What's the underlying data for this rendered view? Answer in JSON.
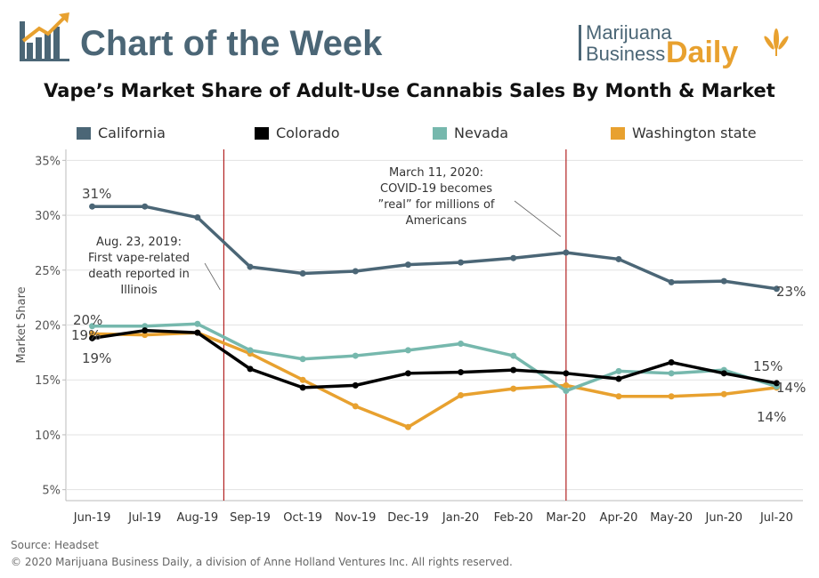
{
  "header": {
    "title": "Chart of the Week",
    "brand_line1": "Marijuana",
    "brand_line2a": "Business",
    "brand_line2b": "Daily",
    "colors": {
      "title": "#4b6676",
      "brand_dark": "#4b6676",
      "brand_orange": "#e8a12f"
    }
  },
  "chart_data": {
    "type": "line",
    "title": "Vape’s Market Share of Adult-Use Cannabis Sales By Month & Market",
    "ylabel": "Market Share",
    "xlabel": "",
    "categories": [
      "Jun-19",
      "Jul-19",
      "Aug-19",
      "Sep-19",
      "Oct-19",
      "Nov-19",
      "Dec-19",
      "Jan-20",
      "Feb-20",
      "Mar-20",
      "Apr-20",
      "May-20",
      "Jun-20",
      "Jul-20"
    ],
    "ylim": [
      4,
      36
    ],
    "yticks": [
      5,
      10,
      15,
      20,
      25,
      30,
      35
    ],
    "ytick_labels": [
      "5%",
      "10%",
      "15%",
      "20%",
      "25%",
      "30%",
      "35%"
    ],
    "grid": true,
    "legend_position": "top",
    "series": [
      {
        "name": "California",
        "color": "#4b6676",
        "values": [
          30.8,
          30.8,
          29.8,
          25.3,
          24.7,
          24.9,
          25.5,
          25.7,
          26.1,
          26.6,
          26.0,
          23.9,
          24.0,
          23.3
        ],
        "start_label": "31%",
        "end_label": "23%"
      },
      {
        "name": "Colorado",
        "color": "#000000",
        "values": [
          18.8,
          19.5,
          19.3,
          16.0,
          14.3,
          14.5,
          15.6,
          15.7,
          15.9,
          15.6,
          15.1,
          16.6,
          15.6,
          14.7
        ],
        "start_label": "19%",
        "end_label": "15%"
      },
      {
        "name": "Nevada",
        "color": "#76b8ad",
        "values": [
          19.9,
          19.9,
          20.1,
          17.7,
          16.9,
          17.2,
          17.7,
          18.3,
          17.2,
          14.0,
          15.8,
          15.6,
          15.9,
          14.4
        ],
        "start_label": "20%",
        "end_label": "14%"
      },
      {
        "name": "Washington state",
        "color": "#e8a12f",
        "values": [
          19.2,
          19.1,
          19.3,
          17.4,
          15.0,
          12.6,
          10.7,
          13.6,
          14.2,
          14.5,
          13.5,
          13.5,
          13.7,
          14.3
        ],
        "start_label": "19%",
        "end_label": "14%"
      }
    ],
    "annotations": [
      {
        "text": [
          "Aug. 23, 2019:",
          "First vape-related",
          "death reported in",
          "Illinois"
        ]
      },
      {
        "text": [
          "March 11, 2020:",
          "COVID-19 becomes",
          "”real” for millions of",
          "Americans"
        ]
      }
    ],
    "reference_line_color": "#b22222"
  },
  "footer": {
    "source": "Source: Headset",
    "copyright": "© 2020 Marijuana Business Daily, a division of Anne Holland Ventures Inc. All rights reserved."
  }
}
